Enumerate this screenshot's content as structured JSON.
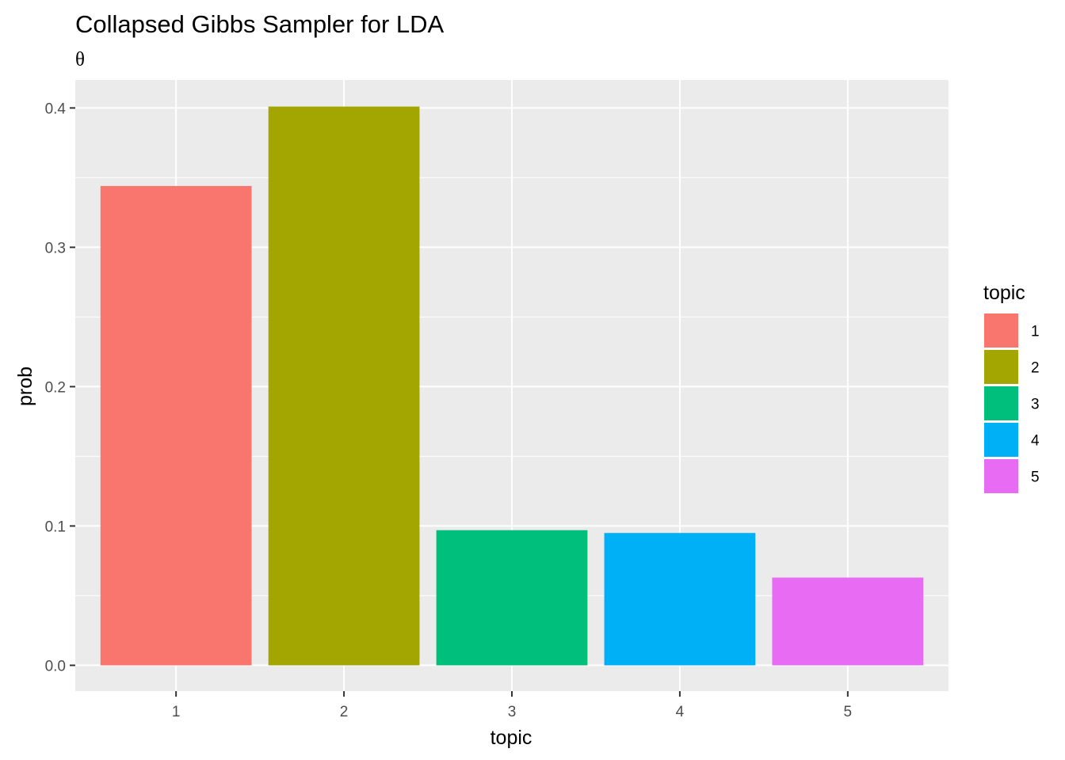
{
  "chart_data": {
    "type": "bar",
    "title": "Collapsed Gibbs Sampler for LDA",
    "subtitle": "θ",
    "xlabel": "topic",
    "ylabel": "prob",
    "categories": [
      "1",
      "2",
      "3",
      "4",
      "5"
    ],
    "values": [
      0.344,
      0.401,
      0.097,
      0.095,
      0.063
    ],
    "colors": [
      "#F8766D",
      "#A3A500",
      "#00BF7D",
      "#00B0F6",
      "#E76BF3"
    ],
    "ylim": [
      -0.0185,
      0.4201
    ],
    "yticks": [
      0.0,
      0.1,
      0.2,
      0.3,
      0.4
    ],
    "ytick_labels": [
      "0.0",
      "0.1",
      "0.2",
      "0.3",
      "0.4"
    ],
    "legend": {
      "title": "topic",
      "position": "right",
      "labels": [
        "1",
        "2",
        "3",
        "4",
        "5"
      ]
    },
    "background": "#EBEBEB",
    "grid": true,
    "grid_color": "#FFFFFF"
  }
}
